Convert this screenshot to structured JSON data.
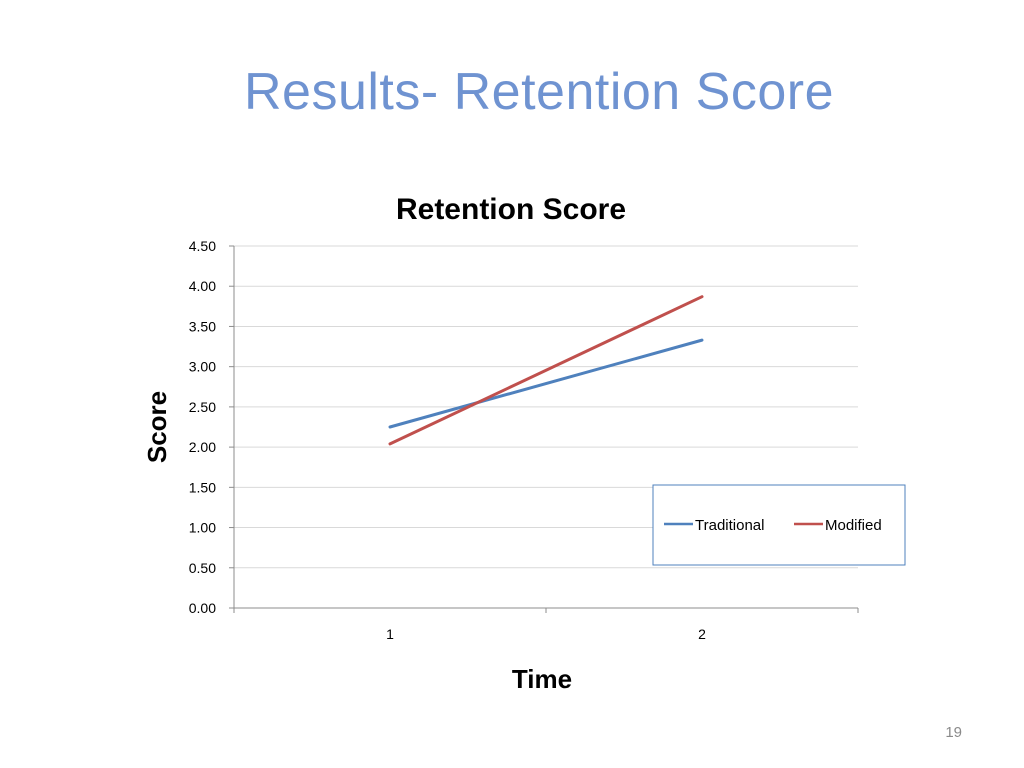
{
  "slide": {
    "title": "Results- Retention Score",
    "page_number": "19"
  },
  "colors": {
    "title": "#6f93d1",
    "traditional": "#4f81bd",
    "modified": "#c0504d",
    "legend_border": "#4f81bd",
    "gridline": "#d9d9d9"
  },
  "chart_data": {
    "type": "line",
    "title": "Retention Score",
    "xlabel": "Time",
    "ylabel": "Score",
    "x": [
      "1",
      "2"
    ],
    "ylim": [
      0,
      4.5
    ],
    "ytick_step": 0.5,
    "ytick_labels": [
      "0.00",
      "0.50",
      "1.00",
      "1.50",
      "2.00",
      "2.50",
      "3.00",
      "3.50",
      "4.00",
      "4.50"
    ],
    "grid": true,
    "legend_position": "right",
    "series": [
      {
        "name": "Traditional",
        "values": [
          2.25,
          3.33
        ]
      },
      {
        "name": "Modified",
        "values": [
          2.04,
          3.87
        ]
      }
    ]
  }
}
